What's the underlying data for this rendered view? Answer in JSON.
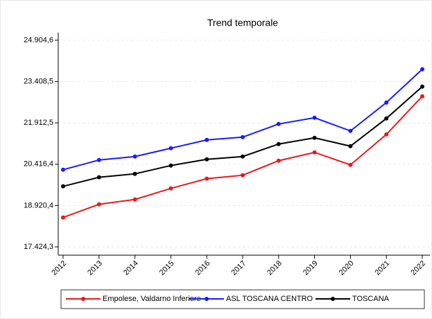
{
  "chart_data": {
    "type": "line",
    "title": "Trend temporale",
    "categories": [
      "2012",
      "2013",
      "2014",
      "2015",
      "2016",
      "2017",
      "2018",
      "2019",
      "2020",
      "2021",
      "2022"
    ],
    "series": [
      {
        "name": "Empolese, Valdarno Inferiore",
        "color": "#e8191b",
        "values": [
          18489,
          18965,
          19141,
          19542,
          19893,
          20018,
          20544,
          20845,
          20394,
          21496,
          22875
        ]
      },
      {
        "name": "ASL TOSCANA CENTRO",
        "color": "#1a1aff",
        "values": [
          20218,
          20569,
          20695,
          20995,
          21296,
          21396,
          21872,
          22098,
          21622,
          22649,
          23852
        ]
      },
      {
        "name": "TOSCANA",
        "color": "#000000",
        "values": [
          19617,
          19943,
          20068,
          20369,
          20594,
          20695,
          21146,
          21371,
          21070,
          22073,
          23226
        ]
      }
    ],
    "ylim": [
      17124,
      25180
    ],
    "yticks": [
      {
        "value": 17424.3,
        "label": "17.424,3"
      },
      {
        "value": 18920.4,
        "label": "18.920,4"
      },
      {
        "value": 20416.4,
        "label": "20.416,4"
      },
      {
        "value": 21912.5,
        "label": "21.912,5"
      },
      {
        "value": 23408.5,
        "label": "23.408,5"
      },
      {
        "value": 24904.6,
        "label": "24.904,6"
      }
    ],
    "grid": true,
    "legend": "bottom"
  }
}
